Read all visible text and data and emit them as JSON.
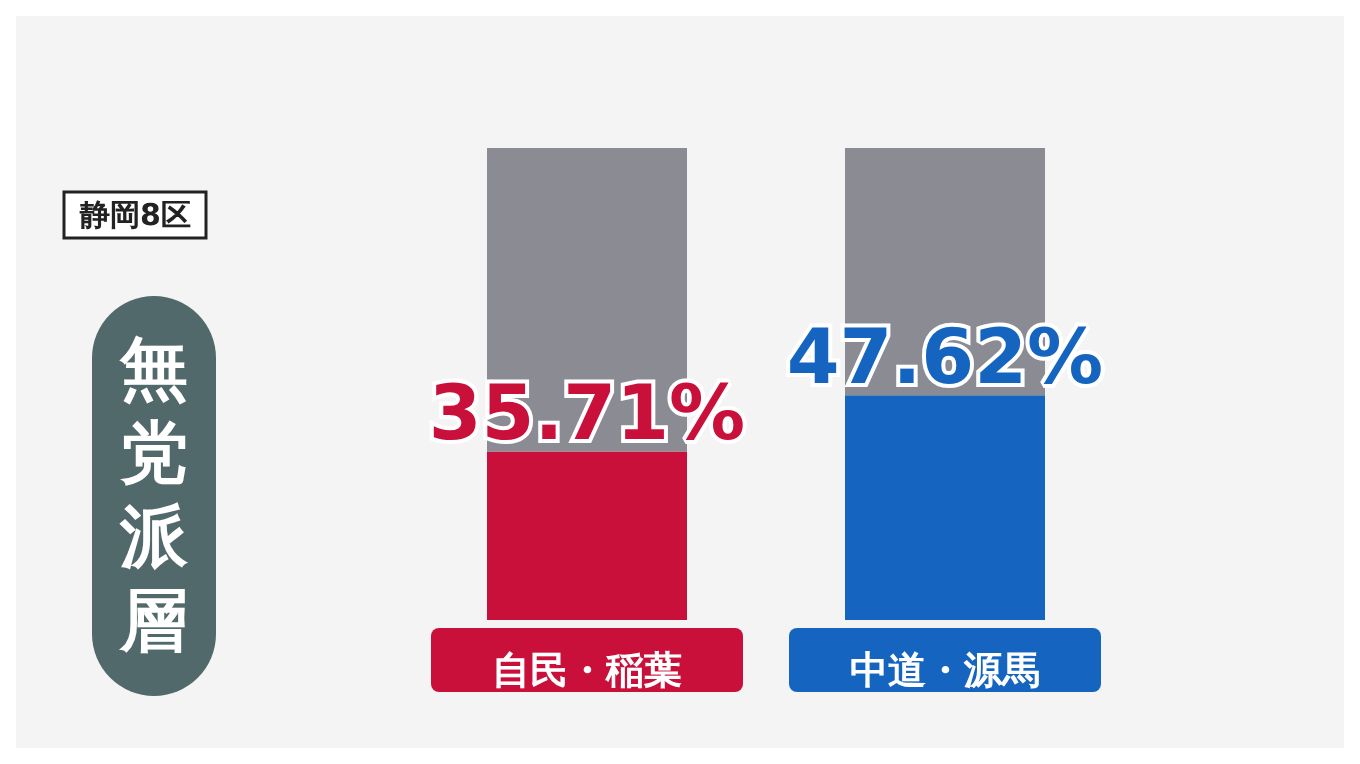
{
  "chart_data": {
    "type": "bar",
    "title": "静岡8区",
    "subtitle": "無党派層",
    "stacked": true,
    "categories": [
      "自民・稲葉",
      "中道・源馬"
    ],
    "series": [
      {
        "colors": [
          "#c8103a",
          "#1565c0"
        ],
        "values": [
          35.71,
          47.62
        ],
        "value_labels": [
          "35.71%",
          "47.62%"
        ]
      },
      {
        "color": "#8a8b93",
        "values": [
          64.29,
          52.38
        ]
      }
    ],
    "tick_labels": "x"
  }
}
